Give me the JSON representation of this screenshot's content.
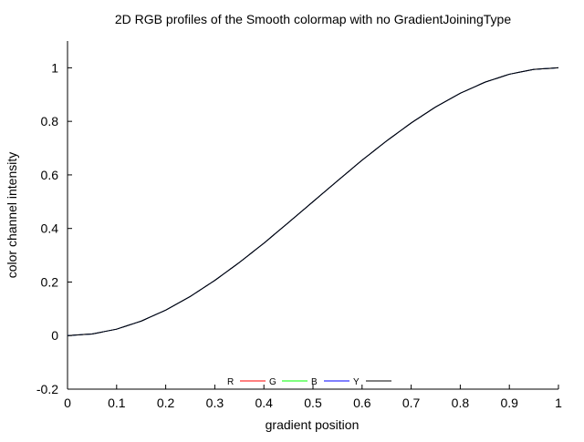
{
  "chart_data": {
    "type": "line",
    "title": "2D RGB profiles of the Smooth colormap with no GradientJoiningType",
    "xlabel": "gradient position",
    "ylabel": "color channel intensity",
    "xlim": [
      0,
      1
    ],
    "ylim": [
      -0.2,
      1.1
    ],
    "x_ticks": [
      "0",
      "0.1",
      "0.2",
      "0.3",
      "0.4",
      "0.5",
      "0.6",
      "0.7",
      "0.8",
      "0.9",
      "1"
    ],
    "y_ticks": [
      "-0.2",
      "0",
      "0.2",
      "0.4",
      "0.6",
      "0.8",
      "1"
    ],
    "grid": false,
    "legend_position": "bottom-center",
    "x": [
      0,
      0.05,
      0.1,
      0.15,
      0.2,
      0.25,
      0.3,
      0.35,
      0.4,
      0.45,
      0.5,
      0.55,
      0.6,
      0.65,
      0.7,
      0.75,
      0.8,
      0.85,
      0.9,
      0.95,
      1
    ],
    "series": [
      {
        "name": "R",
        "color": "#ff0000",
        "values": [
          0,
          0.006,
          0.024,
          0.054,
          0.095,
          0.146,
          0.206,
          0.273,
          0.345,
          0.422,
          0.5,
          0.578,
          0.655,
          0.727,
          0.794,
          0.854,
          0.905,
          0.946,
          0.976,
          0.994,
          1
        ]
      },
      {
        "name": "G",
        "color": "#00ff00",
        "values": [
          0,
          0.006,
          0.024,
          0.054,
          0.095,
          0.146,
          0.206,
          0.273,
          0.345,
          0.422,
          0.5,
          0.578,
          0.655,
          0.727,
          0.794,
          0.854,
          0.905,
          0.946,
          0.976,
          0.994,
          1
        ]
      },
      {
        "name": "B",
        "color": "#0000ff",
        "values": [
          0,
          0.006,
          0.024,
          0.054,
          0.095,
          0.146,
          0.206,
          0.273,
          0.345,
          0.422,
          0.5,
          0.578,
          0.655,
          0.727,
          0.794,
          0.854,
          0.905,
          0.946,
          0.976,
          0.994,
          1
        ]
      },
      {
        "name": "Y",
        "color": "#000000",
        "values": [
          0,
          0.006,
          0.024,
          0.054,
          0.095,
          0.146,
          0.206,
          0.273,
          0.345,
          0.422,
          0.5,
          0.578,
          0.655,
          0.727,
          0.794,
          0.854,
          0.905,
          0.946,
          0.976,
          0.994,
          1
        ]
      }
    ]
  }
}
